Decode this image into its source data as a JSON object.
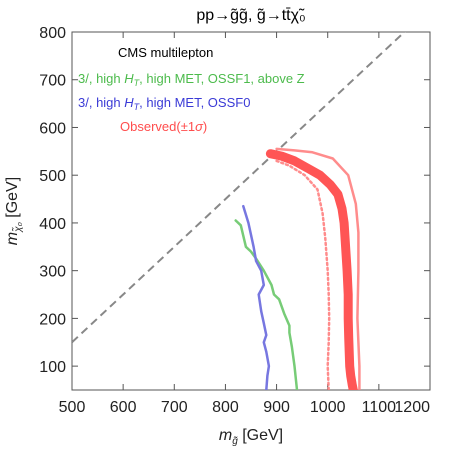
{
  "chart_data": {
    "type": "line",
    "title": "pp→g̃g̃, g̃→tt̄χ̃₀",
    "xlabel": {
      "main": "m",
      "sub": "g̃",
      "unit": " [GeV]"
    },
    "ylabel": {
      "main": "m",
      "sub": "χ̃₀",
      "unit": " [GeV]"
    },
    "xlim": [
      500,
      1200
    ],
    "ylim": [
      50,
      800
    ],
    "xticks": [
      500,
      600,
      700,
      800,
      900,
      1000,
      1100,
      1200
    ],
    "yticks": [
      100,
      200,
      300,
      400,
      500,
      600,
      700,
      800
    ],
    "grid": false,
    "legend": {
      "placement": "top-left",
      "header": "CMS multilepton",
      "entries": [
        {
          "pre": "3/, high ",
          "mid": "H",
          "sub": "T",
          "post": ", high MET, OSSF1, above Z",
          "color": "#4cbb4c"
        },
        {
          "pre": "3/, high ",
          "mid": "H",
          "sub": "T",
          "post": ", high MET, OSSF0",
          "color": "#3a3ad6"
        },
        {
          "pre": "Observed(±1",
          "mid": "σ",
          "sub": "",
          "post": ")",
          "color": "#ff4d4d"
        }
      ]
    },
    "diagonal": {
      "x": [
        500,
        1200
      ],
      "y": [
        150,
        850
      ],
      "color": "#888888"
    },
    "series": [
      {
        "id": "green",
        "color": "#77cc77",
        "x": [
          820,
          830,
          840,
          850,
          860,
          875,
          890,
          895,
          905,
          915,
          925,
          925,
          930,
          935,
          940
        ],
        "y": [
          405,
          395,
          350,
          340,
          325,
          300,
          270,
          250,
          240,
          210,
          185,
          170,
          140,
          100,
          50
        ]
      },
      {
        "id": "blue",
        "color": "#7777e0",
        "x": [
          835,
          845,
          855,
          860,
          870,
          875,
          865,
          870,
          875,
          880,
          875,
          880,
          885,
          882,
          880
        ],
        "y": [
          435,
          400,
          350,
          320,
          300,
          270,
          250,
          215,
          190,
          165,
          150,
          130,
          100,
          80,
          50
        ]
      },
      {
        "id": "observed",
        "color": "#ff5555",
        "x": [
          888,
          910,
          935,
          960,
          985,
          1005,
          1020,
          1028,
          1032,
          1035,
          1038,
          1040,
          1040,
          1041,
          1042,
          1043,
          1045,
          1048,
          1050
        ],
        "y": [
          545,
          540,
          530,
          515,
          500,
          480,
          460,
          430,
          400,
          350,
          300,
          250,
          200,
          160,
          130,
          100,
          80,
          60,
          50
        ]
      },
      {
        "id": "observed-plus",
        "color": "#ff8080",
        "x": [
          900,
          935,
          970,
          1010,
          1040,
          1055,
          1060,
          1060,
          1058,
          1060,
          1062,
          1062
        ],
        "y": [
          555,
          552,
          548,
          535,
          500,
          440,
          380,
          300,
          200,
          150,
          100,
          50
        ]
      },
      {
        "id": "observed-minus",
        "color": "#ff8080",
        "x": [
          900,
          925,
          955,
          980,
          990,
          995,
          1000,
          1002,
          1003,
          1002,
          1000,
          1002
        ],
        "y": [
          530,
          520,
          500,
          470,
          420,
          370,
          300,
          250,
          200,
          150,
          100,
          50
        ]
      }
    ]
  }
}
